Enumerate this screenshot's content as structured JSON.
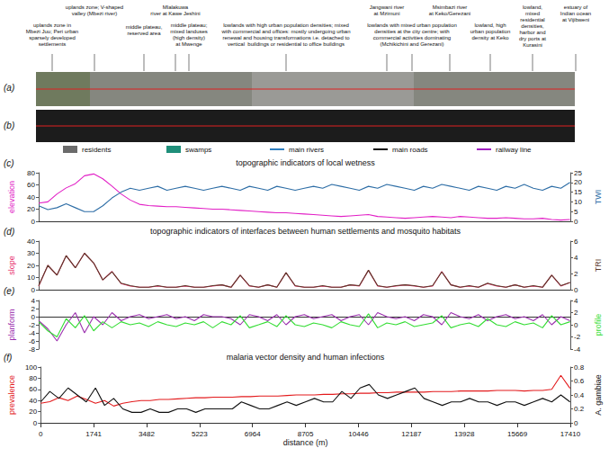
{
  "figure": {
    "annotations": [
      "uplands zone in\nMbezi Juu; Peri urban\nsparsely developed\nsettlements",
      "uplands zone; V-shaped\nvalley (Mbezi river)",
      "Mlalakuwa\nriver at Kawe Jeshini",
      "middle plateau,\nreserved area",
      "middle plateau;\nmixed landuses\n(high density)\nat Mwenge",
      "lowlands with high urban population densities; mixed\nwith commercial and offices: mostly undergoing urban\nrenewal and housing transformations i.e. detached to\nvertical  buildings or residential to office buildings",
      "Jangwani river\nat Mzimuni",
      "lowlands with mixed urban population\ndensities at the city centre; with\ncommercial activities dominating\n(Mchikichini and Gerezani)",
      "Msimbazi river\nat Keko/Gerezani",
      "lowland, high\nurban population\ndensity at Keko",
      "lowland,\nmixed\nresidential\ndensities,\nharbor and\ndry ports at\nKurasini",
      "estuary of\nIndian ocean\nat Vijibweni"
    ],
    "strip_a": {
      "panel": "(a)"
    },
    "strip_b": {
      "panel": "(b)",
      "legend": [
        {
          "label": "residents",
          "color": "#6b6b6b",
          "marker": "box"
        },
        {
          "label": "swamps",
          "color": "#1f8f7a",
          "marker": "box"
        },
        {
          "label": "main rivers",
          "color": "#2f7fc0",
          "marker": "line"
        },
        {
          "label": "main roads",
          "color": "#111111",
          "marker": "line"
        },
        {
          "label": "railway line",
          "color": "#a020c0",
          "marker": "line"
        }
      ]
    }
  },
  "chart_data": [
    {
      "type": "line",
      "panel": "(c)",
      "title": "topographic indicators of local wetness",
      "x": [
        0,
        300,
        600,
        900,
        1200,
        1500,
        1800,
        2100,
        2400,
        2700,
        3000,
        3300,
        3600,
        3900,
        4200,
        4500,
        4800,
        5100,
        5400,
        5700,
        6000,
        6300,
        6600,
        6900,
        7200,
        7500,
        7800,
        8100,
        8400,
        8700,
        9000,
        9300,
        9600,
        9900,
        10200,
        10500,
        10800,
        11100,
        11400,
        11700,
        12000,
        12300,
        12600,
        12900,
        13200,
        13500,
        13800,
        14100,
        14400,
        14700,
        15000,
        15300,
        15600,
        15900,
        16200,
        16500,
        16800,
        17100,
        17400
      ],
      "xlim": [
        0,
        17410
      ],
      "tick_labels": "y",
      "ylim": [
        0,
        80
      ],
      "yticks": [
        0,
        20,
        40,
        60,
        80
      ],
      "y2lim": [
        0,
        25
      ],
      "y2ticks": [
        0,
        5,
        10,
        15,
        20,
        25
      ],
      "series": [
        {
          "name": "elevation",
          "color": "#e21fc6",
          "axis": "y",
          "values": [
            30,
            32,
            45,
            55,
            62,
            75,
            78,
            70,
            58,
            45,
            35,
            28,
            26,
            25,
            24,
            24,
            23,
            22,
            21,
            20,
            20,
            19,
            18,
            17,
            16,
            15,
            14,
            14,
            13,
            12,
            11,
            10,
            9,
            8,
            9,
            10,
            11,
            8,
            7,
            6,
            5,
            6,
            7,
            8,
            7,
            6,
            8,
            7,
            6,
            5,
            5,
            6,
            5,
            4,
            4,
            5,
            3,
            2,
            3
          ]
        },
        {
          "name": "TWI",
          "color": "#2e6ea6",
          "axis": "y2",
          "values": [
            8,
            6,
            7,
            9,
            7,
            5,
            5,
            8,
            12,
            15,
            17,
            16,
            17,
            18,
            16,
            17,
            18,
            17,
            16,
            17,
            18,
            17,
            16,
            18,
            17,
            16,
            18,
            17,
            16,
            17,
            18,
            17,
            19,
            18,
            17,
            16,
            18,
            17,
            19,
            18,
            17,
            16,
            18,
            17,
            19,
            18,
            17,
            16,
            18,
            17,
            16,
            18,
            17,
            19,
            17,
            16,
            18,
            17,
            20
          ]
        }
      ]
    },
    {
      "type": "line",
      "panel": "(d)",
      "title": "topographic indicators of interfaces between human settlements and mosquito habitats",
      "x": [
        0,
        300,
        600,
        900,
        1200,
        1500,
        1800,
        2100,
        2400,
        2700,
        3000,
        3300,
        3600,
        3900,
        4200,
        4500,
        4800,
        5100,
        5400,
        5700,
        6000,
        6300,
        6600,
        6900,
        7200,
        7500,
        7800,
        8100,
        8400,
        8700,
        9000,
        9300,
        9600,
        9900,
        10200,
        10500,
        10800,
        11100,
        11400,
        11700,
        12000,
        12300,
        12600,
        12900,
        13200,
        13500,
        13800,
        14100,
        14400,
        14700,
        15000,
        15300,
        15600,
        15900,
        16200,
        16500,
        16800,
        17100,
        17400
      ],
      "xlim": [
        0,
        17410
      ],
      "tick_labels": "y",
      "ylim": [
        0,
        40
      ],
      "yticks": [
        0,
        10,
        20,
        30,
        40
      ],
      "y2lim": [
        0,
        6
      ],
      "y2ticks": [
        0,
        2,
        4,
        6
      ],
      "series": [
        {
          "name": "slope",
          "color": "#e8336e",
          "axis": "y",
          "values": [
            3,
            20,
            12,
            28,
            18,
            30,
            22,
            8,
            15,
            5,
            3,
            2,
            2,
            3,
            2,
            2,
            3,
            2,
            2,
            3,
            4,
            2,
            12,
            3,
            2,
            4,
            2,
            14,
            3,
            2,
            2,
            3,
            2,
            2,
            4,
            3,
            16,
            3,
            2,
            3,
            4,
            3,
            2,
            3,
            15,
            4,
            2,
            3,
            2,
            5,
            3,
            2,
            4,
            2,
            3,
            2,
            12,
            3,
            6
          ]
        },
        {
          "name": "TRI",
          "color": "#5a3a2a",
          "axis": "y2",
          "values": [
            0.5,
            3,
            1.8,
            4.2,
            2.7,
            4.5,
            3.3,
            1.2,
            2.2,
            0.8,
            0.5,
            0.3,
            0.3,
            0.5,
            0.3,
            0.3,
            0.5,
            0.3,
            0.3,
            0.5,
            0.6,
            0.3,
            1.8,
            0.5,
            0.3,
            0.6,
            0.3,
            2.1,
            0.5,
            0.3,
            0.3,
            0.5,
            0.3,
            0.3,
            0.6,
            0.5,
            2.4,
            0.5,
            0.3,
            0.5,
            0.6,
            0.5,
            0.3,
            0.5,
            2.2,
            0.6,
            0.3,
            0.5,
            0.3,
            0.8,
            0.5,
            0.3,
            0.6,
            0.3,
            0.5,
            0.3,
            1.8,
            0.5,
            0.9
          ]
        }
      ]
    },
    {
      "type": "line",
      "panel": "(e)",
      "x": [
        0,
        300,
        600,
        900,
        1200,
        1500,
        1800,
        2100,
        2400,
        2700,
        3000,
        3300,
        3600,
        3900,
        4200,
        4500,
        4800,
        5100,
        5400,
        5700,
        6000,
        6300,
        6600,
        6900,
        7200,
        7500,
        7800,
        8100,
        8400,
        8700,
        9000,
        9300,
        9600,
        9900,
        10200,
        10500,
        10800,
        11100,
        11400,
        11700,
        12000,
        12300,
        12600,
        12900,
        13200,
        13500,
        13800,
        14100,
        14400,
        14700,
        15000,
        15300,
        15600,
        15900,
        16200,
        16500,
        16800,
        17100,
        17400
      ],
      "xlim": [
        0,
        17410
      ],
      "tick_labels": "y",
      "ylim": [
        -8,
        4
      ],
      "yticks": [
        -8,
        -6,
        -4,
        -2,
        0,
        2,
        4
      ],
      "y2lim": [
        -4,
        4
      ],
      "y2ticks": [
        -4,
        -2,
        0,
        2,
        4
      ],
      "series": [
        {
          "name": "planform",
          "color": "#9b2fae",
          "axis": "y",
          "values": [
            -1,
            -3,
            -6,
            -2,
            1,
            -4,
            0,
            -2,
            1,
            -1,
            0,
            0.5,
            -0.5,
            0,
            0.5,
            -0.5,
            0,
            -1,
            0.5,
            0,
            0,
            -0.5,
            -2,
            0.5,
            0,
            -1,
            0.5,
            -2,
            0,
            0.5,
            -0.5,
            0,
            0.5,
            -1,
            0,
            0.5,
            -2,
            1,
            0,
            -0.5,
            0,
            -1,
            0.5,
            0,
            -2,
            1,
            0,
            -0.5,
            0.5,
            -1,
            0,
            0.5,
            -0.5,
            0,
            -1,
            0.5,
            -2,
            0,
            -1
          ]
        },
        {
          "name": "profile",
          "color": "#33dd33",
          "axis": "y2",
          "values": [
            0.5,
            -1,
            -2,
            1,
            -0.5,
            1.5,
            -1,
            0.5,
            -0.5,
            0.5,
            0,
            0.3,
            -0.3,
            0.5,
            0,
            -0.3,
            0.3,
            0,
            0.5,
            -0.5,
            0.5,
            0,
            1.5,
            -0.5,
            0,
            0.5,
            -0.3,
            1.5,
            0,
            -0.3,
            0.3,
            0,
            -0.5,
            0.5,
            0,
            -0.3,
            1.8,
            -0.5,
            0.3,
            0,
            0.5,
            -0.3,
            0,
            0.3,
            1.5,
            -0.5,
            0,
            0.3,
            -0.3,
            1,
            0,
            -0.3,
            0.5,
            0,
            0.3,
            -0.5,
            1.5,
            0,
            0.5
          ]
        }
      ]
    },
    {
      "type": "line",
      "panel": "(f)",
      "title": "malaria vector density and human infections",
      "x": [
        0,
        300,
        600,
        900,
        1200,
        1500,
        1800,
        2100,
        2400,
        2700,
        3000,
        3300,
        3600,
        3900,
        4200,
        4500,
        4800,
        5100,
        5400,
        5700,
        6000,
        6300,
        6600,
        6900,
        7200,
        7500,
        7800,
        8100,
        8400,
        8700,
        9000,
        9300,
        9600,
        9900,
        10200,
        10500,
        10800,
        11100,
        11400,
        11700,
        12000,
        12300,
        12600,
        12900,
        13200,
        13500,
        13800,
        14100,
        14400,
        14700,
        15000,
        15300,
        15600,
        15900,
        16200,
        16500,
        16800,
        17100,
        17400
      ],
      "xlabel": "distance (m)",
      "xlim": [
        0,
        17410
      ],
      "xticks": [
        0,
        1741,
        3482,
        5223,
        6964,
        8705,
        10446,
        12187,
        13928,
        15669,
        17410
      ],
      "ylim": [
        0,
        100
      ],
      "yticks": [
        0,
        20,
        40,
        60,
        80,
        100
      ],
      "y2lim": [
        0,
        0.8
      ],
      "y2ticks": [
        0,
        0.2,
        0.4,
        0.6,
        0.8
      ],
      "series": [
        {
          "name": "prevalence",
          "color": "#e31a1c",
          "axis": "y",
          "values": [
            35,
            38,
            45,
            40,
            48,
            42,
            35,
            40,
            30,
            35,
            38,
            40,
            40,
            42,
            42,
            43,
            44,
            45,
            45,
            46,
            46,
            46,
            47,
            47,
            48,
            48,
            48,
            49,
            50,
            50,
            50,
            51,
            51,
            52,
            52,
            53,
            53,
            54,
            54,
            55,
            55,
            55,
            55,
            56,
            56,
            56,
            57,
            57,
            57,
            57,
            58,
            58,
            58,
            57,
            58,
            58,
            60,
            85,
            62
          ]
        },
        {
          "name": "A. gambiae",
          "color": "#111111",
          "axis": "y2",
          "values": [
            0.3,
            0.45,
            0.35,
            0.5,
            0.4,
            0.3,
            0.5,
            0.25,
            0.35,
            0.2,
            0.15,
            0.15,
            0.2,
            0.15,
            0.15,
            0.2,
            0.2,
            0.15,
            0.2,
            0.2,
            0.2,
            0.2,
            0.3,
            0.25,
            0.2,
            0.2,
            0.25,
            0.3,
            0.25,
            0.3,
            0.35,
            0.3,
            0.3,
            0.45,
            0.35,
            0.5,
            0.55,
            0.4,
            0.35,
            0.4,
            0.45,
            0.5,
            0.35,
            0.3,
            0.25,
            0.3,
            0.3,
            0.35,
            0.3,
            0.3,
            0.25,
            0.3,
            0.3,
            0.25,
            0.3,
            0.35,
            0.3,
            0.4,
            0.3
          ]
        }
      ]
    }
  ]
}
